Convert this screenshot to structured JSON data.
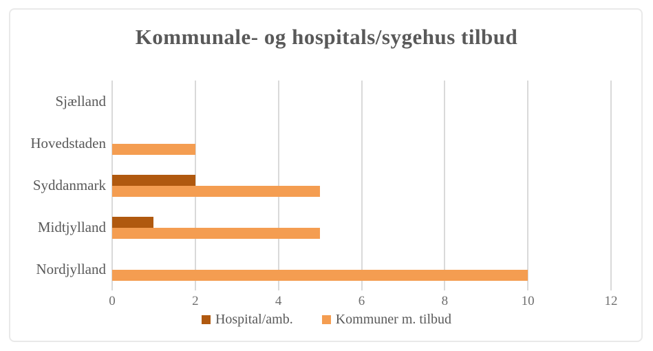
{
  "chart_data": {
    "type": "bar",
    "orientation": "horizontal",
    "title": "Kommunale- og hospitals/sygehus tilbud",
    "categories": [
      "Sjælland",
      "Hovedstaden",
      "Syddanmark",
      "Midtjylland",
      "Nordjylland"
    ],
    "series": [
      {
        "name": "Hospital/amb.",
        "color": "#b0590f",
        "values": [
          0,
          0,
          2,
          1,
          0
        ]
      },
      {
        "name": "Kommuner m. tilbud",
        "color": "#f49d51",
        "values": [
          0,
          2,
          5,
          5,
          10
        ]
      }
    ],
    "xlabel": "",
    "ylabel": "",
    "xlim": [
      0,
      12
    ],
    "xticks": [
      0,
      2,
      4,
      6,
      8,
      10,
      12
    ],
    "grid": true,
    "legend_position": "bottom"
  },
  "style": {
    "title_color": "#595959",
    "category_label_color": "#595959",
    "tick_label_color": "#6e6e6e",
    "gridline_color": "#d9d9d9",
    "frame_border_color": "#e9e9e9",
    "background_color": "#ffffff"
  }
}
